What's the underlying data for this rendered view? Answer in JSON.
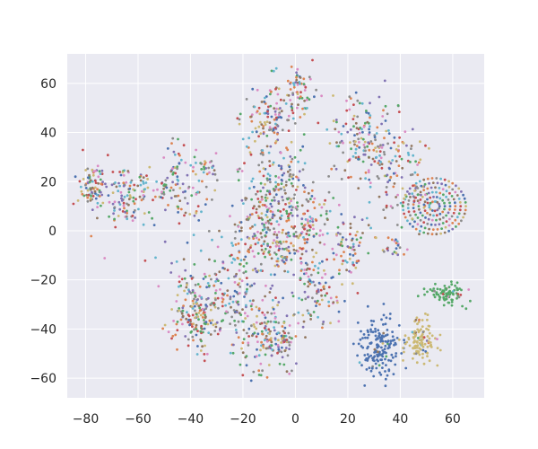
{
  "chart_data": {
    "type": "scatter",
    "title": "",
    "xlabel": "",
    "ylabel": "",
    "xlim": [
      -87,
      72
    ],
    "ylim": [
      -68,
      72
    ],
    "xticks": [
      -80,
      -60,
      -40,
      -20,
      0,
      20,
      40,
      60
    ],
    "yticks": [
      -60,
      -40,
      -20,
      0,
      20,
      40,
      60
    ],
    "xtick_labels": [
      "−80",
      "−60",
      "−40",
      "−20",
      "0",
      "20",
      "40",
      "60"
    ],
    "ytick_labels": [
      "−60",
      "−40",
      "−20",
      "0",
      "20",
      "40",
      "60"
    ],
    "grid": true,
    "legend": "none",
    "style": {
      "background": "#eaeaf2",
      "grid_color": "#ffffff",
      "palette": [
        "#4c72b0",
        "#dd8452",
        "#55a868",
        "#c44e52",
        "#8172b3",
        "#937860",
        "#da8bc3",
        "#8c8c8c",
        "#ccb974",
        "#64b5cd"
      ]
    },
    "clusters": [
      {
        "label": "mixed",
        "cx": -77,
        "cy": 18,
        "sx": 2.5,
        "sy": 5,
        "n": 80
      },
      {
        "label": "mixed",
        "cx": -65,
        "cy": 14,
        "sx": 5,
        "sy": 6,
        "n": 110
      },
      {
        "label": "mixed",
        "cx": -45,
        "cy": 18,
        "sx": 6,
        "sy": 8,
        "n": 120
      },
      {
        "label": "mixed",
        "cx": -33,
        "cy": 26,
        "sx": 2,
        "sy": 2,
        "n": 20
      },
      {
        "label": "mixed",
        "cx": -38,
        "cy": -32,
        "sx": 5,
        "sy": 9,
        "n": 180
      },
      {
        "label": "mixed",
        "cx": -25,
        "cy": -25,
        "sx": 6,
        "sy": 12,
        "n": 160
      },
      {
        "label": "mixed",
        "cx": -10,
        "cy": -42,
        "sx": 6,
        "sy": 8,
        "n": 150
      },
      {
        "label": "mixed",
        "cx": -12,
        "cy": 0,
        "sx": 6,
        "sy": 10,
        "n": 130
      },
      {
        "label": "mixed",
        "cx": -8,
        "cy": 18,
        "sx": 6,
        "sy": 7,
        "n": 120
      },
      {
        "label": "mixed",
        "cx": -10,
        "cy": 45,
        "sx": 5,
        "sy": 8,
        "n": 140
      },
      {
        "label": "mixed",
        "cx": 2,
        "cy": 57,
        "sx": 3,
        "sy": 5,
        "n": 60
      },
      {
        "label": "mixed",
        "cx": 3,
        "cy": 3,
        "sx": 6,
        "sy": 7,
        "n": 130
      },
      {
        "label": "mixed",
        "cx": 8,
        "cy": -25,
        "sx": 6,
        "sy": 7,
        "n": 100
      },
      {
        "label": "mixed",
        "cx": 20,
        "cy": -5,
        "sx": 4,
        "sy": 7,
        "n": 70
      },
      {
        "label": "mixed",
        "cx": 25,
        "cy": 38,
        "sx": 6,
        "sy": 9,
        "n": 160
      },
      {
        "label": "mixed",
        "cx": 38,
        "cy": 22,
        "sx": 6,
        "sy": 12,
        "n": 70
      },
      {
        "label": "mixed",
        "cx": 45,
        "cy": 25,
        "sx": 4,
        "sy": 8,
        "n": 30
      },
      {
        "label": "mixed",
        "cx": 38,
        "cy": -7,
        "sx": 2,
        "sy": 2,
        "n": 20
      },
      {
        "label": "mixed",
        "cx": -4,
        "cy": -8,
        "sx": 3,
        "sy": 4,
        "n": 40
      },
      {
        "label": "mixed",
        "cx": -4,
        "cy": -45,
        "sx": 2,
        "sy": 2,
        "n": 30
      },
      {
        "label": "blue",
        "cx": 32,
        "cy": -48,
        "sx": 4,
        "sy": 6,
        "n": 170,
        "color_index": 0
      },
      {
        "label": "yellow",
        "cx": 48,
        "cy": -45,
        "sx": 3,
        "sy": 5,
        "n": 110,
        "color_index": 8
      },
      {
        "label": "green",
        "cx": 58,
        "cy": -26,
        "sx": 4,
        "sy": 2,
        "n": 80,
        "color_index": 2
      }
    ],
    "ring_cluster": {
      "cx": 53,
      "cy": 10,
      "radius": 12,
      "rings": 6,
      "per_ring": 40
    }
  }
}
